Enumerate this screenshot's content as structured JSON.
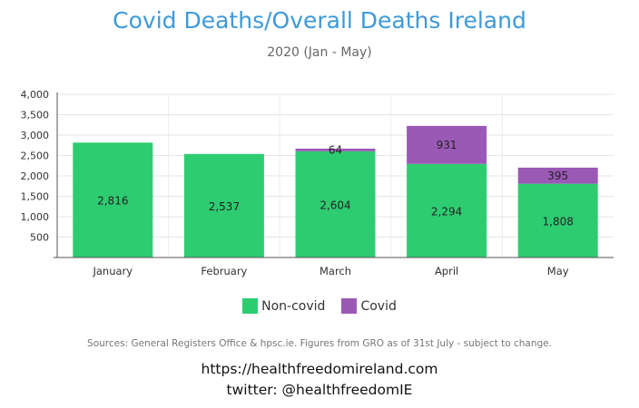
{
  "chart_data": {
    "type": "bar",
    "stacked": true,
    "title": "Covid Deaths/Overall Deaths Ireland",
    "subtitle": "2020 (Jan - May)",
    "xlabel": "",
    "ylabel": "",
    "categories": [
      "January",
      "February",
      "March",
      "April",
      "May"
    ],
    "series": [
      {
        "name": "Non-covid",
        "color": "#2ecc71",
        "values": [
          2816,
          2537,
          2604,
          2294,
          1808
        ],
        "labels": [
          "2,816",
          "2,537",
          "2,604",
          "2,294",
          "1,808"
        ]
      },
      {
        "name": "Covid",
        "color": "#9b59b6",
        "values": [
          0,
          0,
          64,
          931,
          395
        ],
        "labels": [
          "",
          "",
          "64",
          "931",
          "395"
        ]
      }
    ],
    "ylim": [
      0,
      4000
    ],
    "yticks": [
      500,
      1000,
      1500,
      2000,
      2500,
      3000,
      3500,
      4000
    ],
    "ytick_labels": [
      "500",
      "1,000",
      "1,500",
      "2,000",
      "2,500",
      "3,000",
      "3,500",
      "4,000"
    ],
    "grid": true,
    "legend_position": "bottom"
  },
  "footer": {
    "sources": "Sources: General Registers Office & hpsc.ie. Figures from GRO as of 31st July - subject to change.",
    "url": "https://healthfreedomireland.com",
    "twitter": "twitter: @healthfreedomIE"
  }
}
